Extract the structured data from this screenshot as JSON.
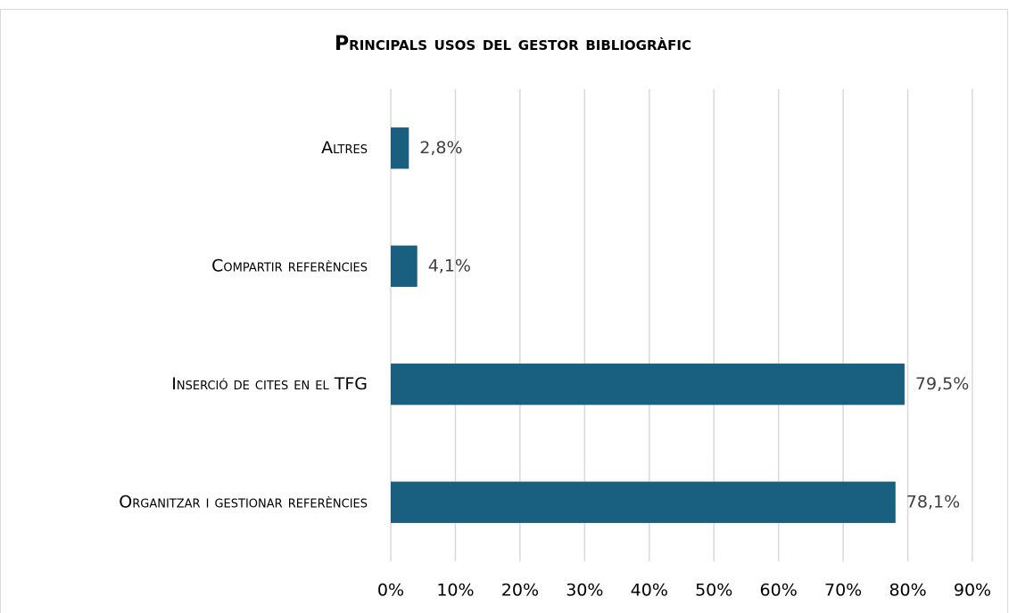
{
  "chart_data": {
    "type": "bar",
    "orientation": "horizontal",
    "title": "Principals usos del gestor bibliogràfic",
    "categories": [
      "Altres",
      "Compartir referències",
      "Inserció de cites en el TFG",
      "Organitzar i gestionar referències"
    ],
    "values": [
      2.8,
      4.1,
      79.5,
      78.1
    ],
    "value_labels": [
      "2,8%",
      "4,1%",
      "79,5%",
      "78,1%"
    ],
    "color": "#185f80",
    "xlim": [
      0,
      90
    ],
    "xticks": [
      {
        "value": 0,
        "label": "0%"
      },
      {
        "value": 10,
        "label": "10%"
      },
      {
        "value": 20,
        "label": "20%"
      },
      {
        "value": 30,
        "label": "30%"
      },
      {
        "value": 40,
        "label": "40%"
      },
      {
        "value": 50,
        "label": "50%"
      },
      {
        "value": 60,
        "label": "60%"
      },
      {
        "value": 70,
        "label": "70%"
      },
      {
        "value": 80,
        "label": "80%"
      },
      {
        "value": 90,
        "label": "90%"
      }
    ],
    "grid": true
  }
}
